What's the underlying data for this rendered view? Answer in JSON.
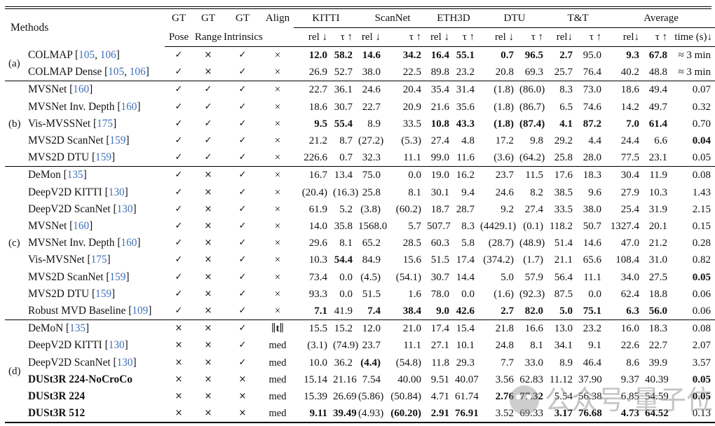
{
  "header": {
    "methods_label": "Methods",
    "gt_cols": [
      {
        "top": "GT",
        "bottom": "Pose"
      },
      {
        "top": "GT",
        "bottom": "Range"
      },
      {
        "top": "GT",
        "bottom": "Intrinsics"
      }
    ],
    "align_label": "Align",
    "datasets": [
      {
        "name": "KITTI",
        "cols": [
          "rel ↓",
          "τ ↑"
        ]
      },
      {
        "name": "ScanNet",
        "cols": [
          "rel ↓",
          "τ ↑"
        ]
      },
      {
        "name": "ETH3D",
        "cols": [
          "rel ↓",
          "τ ↑"
        ]
      },
      {
        "name": "DTU",
        "cols": [
          "rel ↓",
          "τ ↑"
        ]
      },
      {
        "name": "T&T",
        "cols": [
          "rel↓",
          "τ ↑"
        ]
      },
      {
        "name": "Average",
        "cols": [
          "rel↓",
          "τ ↑",
          "time (s)↓"
        ]
      }
    ]
  },
  "groups": [
    {
      "label": "(a)",
      "rows": [
        {
          "name": "COLMAP",
          "cites": [
            "105",
            "106"
          ],
          "pose": "✓",
          "range": "×",
          "intr": "✓",
          "align": "×",
          "vals": [
            "12.0",
            "58.2",
            "14.6",
            "34.2",
            "16.4",
            "55.1",
            "0.7",
            "96.5",
            "2.7",
            "95.0",
            "9.3",
            "67.8",
            "≈ 3 min"
          ],
          "bold": [
            1,
            1,
            1,
            1,
            1,
            1,
            1,
            1,
            1,
            0,
            1,
            1,
            0
          ]
        },
        {
          "name": "COLMAP Dense",
          "cites": [
            "105",
            "106"
          ],
          "pose": "✓",
          "range": "×",
          "intr": "✓",
          "align": "×",
          "vals": [
            "26.9",
            "52.7",
            "38.0",
            "22.5",
            "89.8",
            "23.2",
            "20.8",
            "69.3",
            "25.7",
            "76.4",
            "40.2",
            "48.8",
            "≈ 3 min"
          ],
          "bold": [
            0,
            0,
            0,
            0,
            0,
            0,
            0,
            0,
            0,
            0,
            0,
            0,
            0
          ]
        }
      ]
    },
    {
      "label": "(b)",
      "rows": [
        {
          "name": "MVSNet",
          "cites": [
            "160"
          ],
          "pose": "✓",
          "range": "✓",
          "intr": "✓",
          "align": "×",
          "vals": [
            "22.7",
            "36.1",
            "24.6",
            "20.4",
            "35.4",
            "31.4",
            "(1.8)",
            "(86.0)",
            "8.3",
            "73.0",
            "18.6",
            "49.4",
            "0.07"
          ],
          "bold": [
            0,
            0,
            0,
            0,
            0,
            0,
            0,
            0,
            0,
            0,
            0,
            0,
            0
          ]
        },
        {
          "name": "MVSNet Inv. Depth",
          "cites": [
            "160"
          ],
          "pose": "✓",
          "range": "✓",
          "intr": "✓",
          "align": "×",
          "vals": [
            "18.6",
            "30.7",
            "22.7",
            "20.9",
            "21.6",
            "35.6",
            "(1.8)",
            "(86.7)",
            "6.5",
            "74.6",
            "14.2",
            "49.7",
            "0.32"
          ],
          "bold": [
            0,
            0,
            0,
            0,
            0,
            0,
            0,
            0,
            0,
            0,
            0,
            0,
            0
          ]
        },
        {
          "name": "Vis-MVSSNet",
          "cites": [
            "175"
          ],
          "pose": "✓",
          "range": "✓",
          "intr": "✓",
          "align": "×",
          "vals": [
            "9.5",
            "55.4",
            "8.9",
            "33.5",
            "10.8",
            "43.3",
            "(1.8)",
            "(87.4)",
            "4.1",
            "87.2",
            "7.0",
            "61.4",
            "0.70"
          ],
          "bold": [
            1,
            1,
            0,
            0,
            1,
            1,
            1,
            1,
            1,
            1,
            1,
            1,
            0
          ]
        },
        {
          "name": "MVS2D ScanNet",
          "cites": [
            "159"
          ],
          "pose": "✓",
          "range": "✓",
          "intr": "✓",
          "align": "×",
          "vals": [
            "21.2",
            "8.7",
            "(27.2)",
            "(5.3)",
            "27.4",
            "4.8",
            "17.2",
            "9.8",
            "29.2",
            "4.4",
            "24.4",
            "6.6",
            "0.04"
          ],
          "bold": [
            0,
            0,
            0,
            0,
            0,
            0,
            0,
            0,
            0,
            0,
            0,
            0,
            1
          ]
        },
        {
          "name": "MVS2D DTU",
          "cites": [
            "159"
          ],
          "pose": "✓",
          "range": "✓",
          "intr": "✓",
          "align": "×",
          "vals": [
            "226.6",
            "0.7",
            "32.3",
            "11.1",
            "99.0",
            "11.6",
            "(3.6)",
            "(64.2)",
            "25.8",
            "28.0",
            "77.5",
            "23.1",
            "0.05"
          ],
          "bold": [
            0,
            0,
            0,
            0,
            0,
            0,
            0,
            0,
            0,
            0,
            0,
            0,
            0
          ]
        }
      ]
    },
    {
      "label": "(c)",
      "rows": [
        {
          "name": "DeMon",
          "cites": [
            "135"
          ],
          "pose": "✓",
          "range": "×",
          "intr": "✓",
          "align": "×",
          "vals": [
            "16.7",
            "13.4",
            "75.0",
            "0.0",
            "19.0",
            "16.2",
            "23.7",
            "11.5",
            "17.6",
            "18.3",
            "30.4",
            "11.9",
            "0.08"
          ],
          "bold": [
            0,
            0,
            0,
            0,
            0,
            0,
            0,
            0,
            0,
            0,
            0,
            0,
            0
          ]
        },
        {
          "name": "DeepV2D KITTI",
          "cites": [
            "130"
          ],
          "pose": "✓",
          "range": "×",
          "intr": "✓",
          "align": "×",
          "vals": [
            "(20.4)",
            "(16.3)",
            "25.8",
            "8.1",
            "30.1",
            "9.4",
            "24.6",
            "8.2",
            "38.5",
            "9.6",
            "27.9",
            "10.3",
            "1.43"
          ],
          "bold": [
            0,
            0,
            0,
            0,
            0,
            0,
            0,
            0,
            0,
            0,
            0,
            0,
            0
          ]
        },
        {
          "name": "DeepV2D ScanNet",
          "cites": [
            "130"
          ],
          "pose": "✓",
          "range": "×",
          "intr": "✓",
          "align": "×",
          "vals": [
            "61.9",
            "5.2",
            "(3.8)",
            "(60.2)",
            "18.7",
            "28.7",
            "9.2",
            "27.4",
            "33.5",
            "38.0",
            "25.4",
            "31.9",
            "2.15"
          ],
          "bold": [
            0,
            0,
            0,
            0,
            0,
            0,
            0,
            0,
            0,
            0,
            0,
            0,
            0
          ]
        },
        {
          "name": "MVSNet",
          "cites": [
            "160"
          ],
          "pose": "✓",
          "range": "×",
          "intr": "✓",
          "align": "×",
          "vals": [
            "14.0",
            "35.8",
            "1568.0",
            "5.7",
            "507.7",
            "8.3",
            "(4429.1)",
            "(0.1)",
            "118.2",
            "50.7",
            "1327.4",
            "20.1",
            "0.15"
          ],
          "bold": [
            0,
            0,
            0,
            0,
            0,
            0,
            0,
            0,
            0,
            0,
            0,
            0,
            0
          ]
        },
        {
          "name": "MVSNet Inv. Depth",
          "cites": [
            "160"
          ],
          "pose": "✓",
          "range": "×",
          "intr": "✓",
          "align": "×",
          "vals": [
            "29.6",
            "8.1",
            "65.2",
            "28.5",
            "60.3",
            "5.8",
            "(28.7)",
            "(48.9)",
            "51.4",
            "14.6",
            "47.0",
            "21.2",
            "0.28"
          ],
          "bold": [
            0,
            0,
            0,
            0,
            0,
            0,
            0,
            0,
            0,
            0,
            0,
            0,
            0
          ]
        },
        {
          "name": "Vis-MVSNet",
          "cites": [
            "175"
          ],
          "pose": "✓",
          "range": "×",
          "intr": "✓",
          "align": "×",
          "vals": [
            "10.3",
            "54.4",
            "84.9",
            "15.6",
            "51.5",
            "17.4",
            "(374.2)",
            "(1.7)",
            "21.1",
            "65.6",
            "108.4",
            "31.0",
            "0.82"
          ],
          "bold": [
            0,
            1,
            0,
            0,
            0,
            0,
            0,
            0,
            0,
            0,
            0,
            0,
            0
          ]
        },
        {
          "name": "MVS2D ScanNet",
          "cites": [
            "159"
          ],
          "pose": "✓",
          "range": "×",
          "intr": "✓",
          "align": "×",
          "vals": [
            "73.4",
            "0.0",
            "(4.5)",
            "(54.1)",
            "30.7",
            "14.4",
            "5.0",
            "57.9",
            "56.4",
            "11.1",
            "34.0",
            "27.5",
            "0.05"
          ],
          "bold": [
            0,
            0,
            0,
            0,
            0,
            0,
            0,
            0,
            0,
            0,
            0,
            0,
            1
          ]
        },
        {
          "name": "MVS2D DTU",
          "cites": [
            "159"
          ],
          "pose": "✓",
          "range": "×",
          "intr": "✓",
          "align": "×",
          "vals": [
            "93.3",
            "0.0",
            "51.5",
            "1.6",
            "78.0",
            "0.0",
            "(1.6)",
            "(92.3)",
            "87.5",
            "0.0",
            "62.4",
            "18.8",
            "0.06"
          ],
          "bold": [
            0,
            0,
            0,
            0,
            0,
            0,
            0,
            0,
            0,
            0,
            0,
            0,
            0
          ]
        },
        {
          "name": "Robust MVD Baseline",
          "cites": [
            "109"
          ],
          "pose": "✓",
          "range": "×",
          "intr": "✓",
          "align": "×",
          "vals": [
            "7.1",
            "41.9",
            "7.4",
            "38.4",
            "9.0",
            "42.6",
            "2.7",
            "82.0",
            "5.0",
            "75.1",
            "6.3",
            "56.0",
            "0.06"
          ],
          "bold": [
            1,
            0,
            1,
            1,
            1,
            1,
            1,
            1,
            1,
            1,
            1,
            1,
            0
          ]
        }
      ]
    },
    {
      "label": "(d)",
      "rows": [
        {
          "name": "DeMoN",
          "cites": [
            "135"
          ],
          "pose": "×",
          "range": "×",
          "intr": "✓",
          "align": "∥t∥",
          "vals": [
            "15.5",
            "15.2",
            "12.0",
            "21.0",
            "17.4",
            "15.4",
            "21.8",
            "16.6",
            "13.0",
            "23.2",
            "16.0",
            "18.3",
            "0.08"
          ],
          "bold": [
            0,
            0,
            0,
            0,
            0,
            0,
            0,
            0,
            0,
            0,
            0,
            0,
            0
          ]
        },
        {
          "name": "DeepV2D KITTI",
          "cites": [
            "130"
          ],
          "pose": "×",
          "range": "×",
          "intr": "✓",
          "align": "med",
          "vals": [
            "(3.1)",
            "(74.9)",
            "23.7",
            "11.1",
            "27.1",
            "10.1",
            "24.8",
            "8.1",
            "34.1",
            "9.1",
            "22.6",
            "22.7",
            "2.07"
          ],
          "bold": [
            0,
            0,
            0,
            0,
            0,
            0,
            0,
            0,
            0,
            0,
            0,
            0,
            0
          ]
        },
        {
          "name": "DeepV2D ScanNet",
          "cites": [
            "130"
          ],
          "pose": "×",
          "range": "×",
          "intr": "✓",
          "align": "med",
          "vals": [
            "10.0",
            "36.2",
            "(4.4)",
            "(54.8)",
            "11.8",
            "29.3",
            "7.7",
            "33.0",
            "8.9",
            "46.4",
            "8.6",
            "39.9",
            "3.57"
          ],
          "bold": [
            0,
            0,
            1,
            0,
            0,
            0,
            0,
            0,
            0,
            0,
            0,
            0,
            0
          ]
        },
        {
          "name": "DUSt3R 224-NoCroCo",
          "bold_name": true,
          "pose": "×",
          "range": "×",
          "intr": "×",
          "align": "med",
          "vals": [
            "15.14",
            "21.16",
            "7.54",
            "40.00",
            "9.51",
            "40.07",
            "3.56",
            "62.83",
            "11.12",
            "37.90",
            "9.37",
            "40.39",
            "0.05"
          ],
          "bold": [
            0,
            0,
            0,
            0,
            0,
            0,
            0,
            0,
            0,
            0,
            0,
            0,
            1
          ]
        },
        {
          "name": "DUSt3R 224",
          "bold_name": true,
          "pose": "×",
          "range": "×",
          "intr": "×",
          "align": "med",
          "vals": [
            "15.39",
            "26.69",
            "(5.86)",
            "(50.84)",
            "4.71",
            "61.74",
            "2.76",
            "77.32",
            "5.54",
            "56.38",
            "6.85",
            "54.59",
            "0.05"
          ],
          "bold": [
            0,
            0,
            0,
            0,
            0,
            0,
            1,
            1,
            0,
            0,
            0,
            0,
            1
          ]
        },
        {
          "name": "DUSt3R 512",
          "bold_name": true,
          "pose": "×",
          "range": "×",
          "intr": "×",
          "align": "med",
          "vals": [
            "9.11",
            "39.49",
            "(4.93)",
            "(60.20)",
            "2.91",
            "76.91",
            "3.52",
            "69.33",
            "3.17",
            "76.68",
            "4.73",
            "64.52",
            "0.13"
          ],
          "bold": [
            1,
            1,
            0,
            1,
            1,
            1,
            0,
            0,
            1,
            1,
            1,
            1,
            0
          ]
        }
      ]
    }
  ],
  "watermark": {
    "text": "公众号·量子位"
  }
}
